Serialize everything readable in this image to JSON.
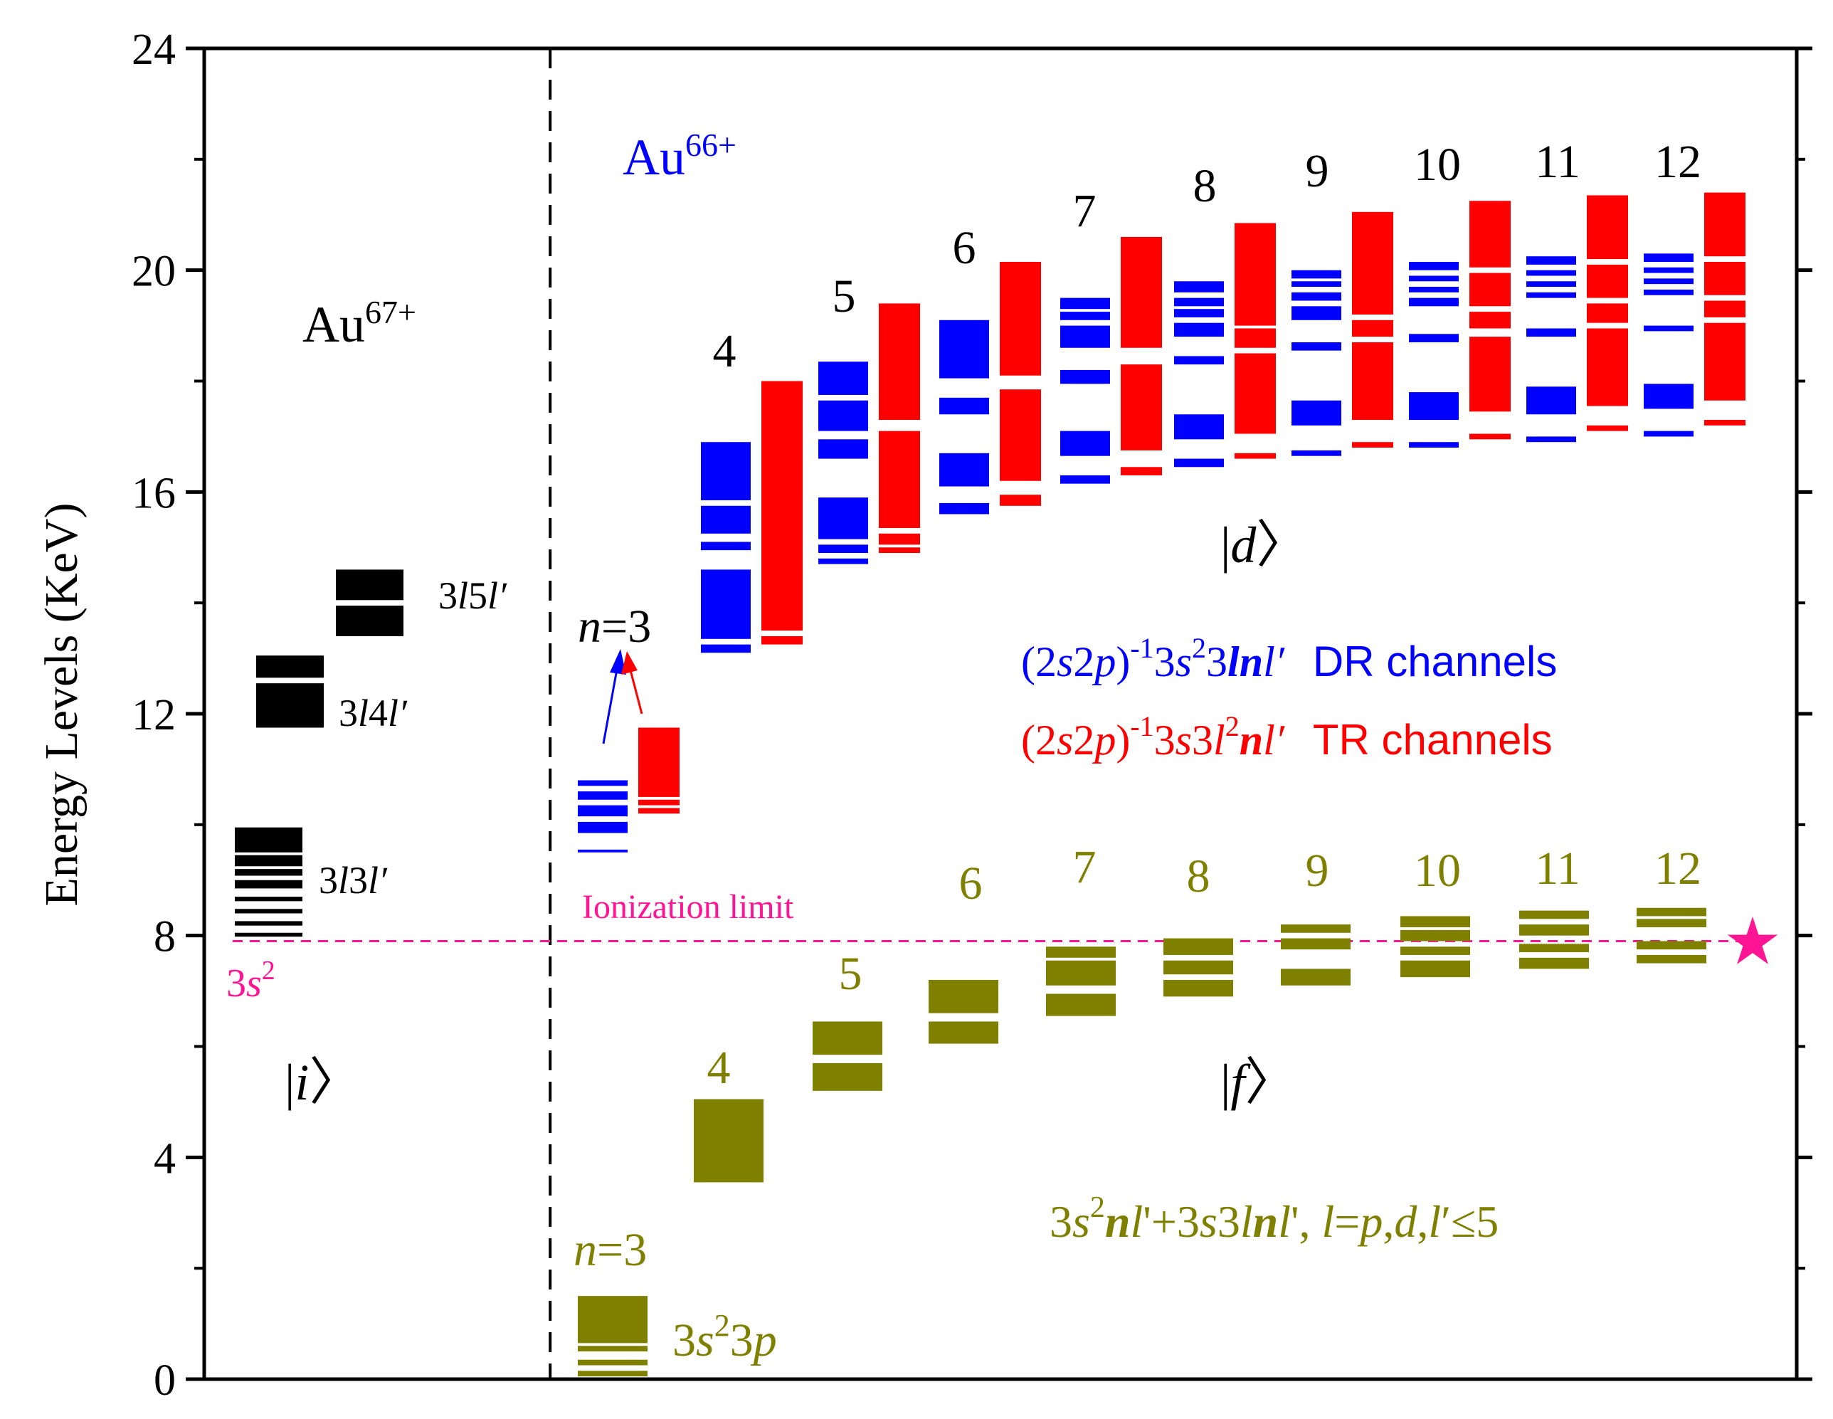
{
  "chart_data": {
    "type": "energy-level-diagram",
    "ylabel": "Energy Levels (KeV)",
    "ylim": [
      0,
      24
    ],
    "yticks": [
      0,
      4,
      8,
      12,
      16,
      20,
      24
    ],
    "grid": false,
    "xlim": [
      0,
      29
    ],
    "divider_x": 6.3,
    "ionization_limit": {
      "energy": 7.9,
      "label": "Ionization limit",
      "color": "#ff1493"
    },
    "colors": {
      "initial": "#000000",
      "dr": "#0000ff",
      "tr": "#ff0000",
      "final": "#808000",
      "limit": "#ff1493",
      "star": "#ff1493"
    },
    "headers": {
      "initial_ion_base": "Au",
      "initial_ion_charge": "67+",
      "recombined_ion_base": "Au",
      "recombined_ion_charge": "66+"
    },
    "state_labels": {
      "initial": {
        "bar": "|",
        "letter": "i",
        "close": "〉"
      },
      "doubly_excited": {
        "bar": "|",
        "letter": "d",
        "close": "〉"
      },
      "final": {
        "bar": "|",
        "letter": "f",
        "close": "〉"
      }
    },
    "initial_ground_label": {
      "num": "3",
      "orb": "s",
      "sup": "2"
    },
    "initial_groups": [
      {
        "name": "3s2",
        "bands": [
          [
            7.98,
            8.05
          ],
          [
            8.18,
            8.26
          ],
          [
            8.4,
            8.48
          ],
          [
            8.62,
            8.7
          ]
        ]
      },
      {
        "name": "3l3l'",
        "bands": [
          [
            8.85,
            9.0
          ],
          [
            9.08,
            9.2
          ],
          [
            9.25,
            9.45
          ],
          [
            9.5,
            9.95
          ]
        ],
        "label": {
          "a": "3",
          "b": "l",
          "c": "3",
          "d": "l′"
        }
      },
      {
        "name": "3l4l'",
        "bands": [
          [
            11.75,
            12.55
          ],
          [
            12.65,
            13.05
          ]
        ],
        "label": {
          "a": "3",
          "b": "l",
          "c": "4",
          "d": "l′"
        }
      },
      {
        "name": "3l5l'",
        "bands": [
          [
            13.4,
            13.95
          ],
          [
            14.05,
            14.6
          ]
        ],
        "label": {
          "a": "3",
          "b": "l",
          "c": "5",
          "d": "l′"
        }
      }
    ],
    "n3_label": {
      "n": "n",
      "eq": "=3"
    },
    "dr_series": [
      {
        "n": 3,
        "bands": [
          [
            9.5,
            9.55
          ],
          [
            9.85,
            10.05
          ],
          [
            10.15,
            10.35
          ],
          [
            10.45,
            10.6
          ],
          [
            10.7,
            10.8
          ]
        ]
      },
      {
        "n": 4,
        "bands": [
          [
            13.1,
            13.25
          ],
          [
            13.35,
            14.6
          ],
          [
            14.95,
            15.1
          ],
          [
            15.25,
            15.75
          ],
          [
            15.85,
            16.9
          ]
        ]
      },
      {
        "n": 5,
        "bands": [
          [
            14.7,
            14.8
          ],
          [
            14.9,
            15.05
          ],
          [
            15.15,
            15.9
          ],
          [
            16.6,
            16.95
          ],
          [
            17.1,
            17.65
          ],
          [
            17.75,
            18.35
          ]
        ]
      },
      {
        "n": 6,
        "bands": [
          [
            15.6,
            15.8
          ],
          [
            16.1,
            16.7
          ],
          [
            17.4,
            17.7
          ],
          [
            18.05,
            19.1
          ]
        ]
      },
      {
        "n": 7,
        "bands": [
          [
            16.15,
            16.3
          ],
          [
            16.65,
            17.1
          ],
          [
            17.95,
            18.2
          ],
          [
            18.6,
            19.0
          ],
          [
            19.1,
            19.25
          ],
          [
            19.3,
            19.5
          ]
        ]
      },
      {
        "n": 8,
        "bands": [
          [
            16.45,
            16.6
          ],
          [
            16.95,
            17.4
          ],
          [
            18.3,
            18.45
          ],
          [
            18.8,
            19.05
          ],
          [
            19.15,
            19.3
          ],
          [
            19.35,
            19.5
          ],
          [
            19.6,
            19.8
          ]
        ]
      },
      {
        "n": 9,
        "bands": [
          [
            16.65,
            16.75
          ],
          [
            17.2,
            17.65
          ],
          [
            18.55,
            18.7
          ],
          [
            19.1,
            19.35
          ],
          [
            19.45,
            19.6
          ],
          [
            19.7,
            19.8
          ],
          [
            19.85,
            20.0
          ]
        ]
      },
      {
        "n": 10,
        "bands": [
          [
            16.8,
            16.9
          ],
          [
            17.3,
            17.8
          ],
          [
            18.7,
            18.85
          ],
          [
            19.35,
            19.5
          ],
          [
            19.6,
            19.7
          ],
          [
            19.8,
            19.9
          ],
          [
            20.0,
            20.15
          ]
        ]
      },
      {
        "n": 11,
        "bands": [
          [
            16.9,
            17.0
          ],
          [
            17.4,
            17.9
          ],
          [
            18.8,
            18.95
          ],
          [
            19.5,
            19.6
          ],
          [
            19.7,
            19.8
          ],
          [
            19.9,
            20.0
          ],
          [
            20.1,
            20.25
          ]
        ]
      },
      {
        "n": 12,
        "bands": [
          [
            17.0,
            17.1
          ],
          [
            17.5,
            17.95
          ],
          [
            18.9,
            19.0
          ],
          [
            19.55,
            19.65
          ],
          [
            19.75,
            19.85
          ],
          [
            19.95,
            20.05
          ],
          [
            20.15,
            20.3
          ]
        ]
      }
    ],
    "tr_series": [
      {
        "n": 3,
        "bands": [
          [
            10.2,
            10.3
          ],
          [
            10.35,
            10.45
          ],
          [
            10.5,
            11.75
          ]
        ]
      },
      {
        "n": 4,
        "bands": [
          [
            13.25,
            13.4
          ],
          [
            13.5,
            18.0
          ]
        ]
      },
      {
        "n": 5,
        "bands": [
          [
            14.9,
            15.0
          ],
          [
            15.05,
            15.25
          ],
          [
            15.35,
            17.1
          ],
          [
            17.3,
            19.4
          ]
        ]
      },
      {
        "n": 6,
        "bands": [
          [
            15.75,
            15.95
          ],
          [
            16.2,
            17.85
          ],
          [
            18.1,
            20.15
          ]
        ]
      },
      {
        "n": 7,
        "bands": [
          [
            16.3,
            16.45
          ],
          [
            16.75,
            18.3
          ],
          [
            18.6,
            20.6
          ]
        ]
      },
      {
        "n": 8,
        "bands": [
          [
            16.6,
            16.7
          ],
          [
            17.05,
            18.5
          ],
          [
            18.6,
            18.95
          ],
          [
            19.0,
            20.85
          ]
        ]
      },
      {
        "n": 9,
        "bands": [
          [
            16.8,
            16.9
          ],
          [
            17.3,
            18.7
          ],
          [
            18.8,
            19.1
          ],
          [
            19.2,
            21.05
          ]
        ]
      },
      {
        "n": 10,
        "bands": [
          [
            16.95,
            17.05
          ],
          [
            17.45,
            18.8
          ],
          [
            18.95,
            19.25
          ],
          [
            19.35,
            19.95
          ],
          [
            20.05,
            21.25
          ]
        ]
      },
      {
        "n": 11,
        "bands": [
          [
            17.1,
            17.2
          ],
          [
            17.55,
            18.95
          ],
          [
            19.05,
            19.4
          ],
          [
            19.5,
            20.1
          ],
          [
            20.2,
            21.35
          ]
        ]
      },
      {
        "n": 12,
        "bands": [
          [
            17.2,
            17.3
          ],
          [
            17.65,
            19.05
          ],
          [
            19.15,
            19.45
          ],
          [
            19.55,
            20.15
          ],
          [
            20.25,
            21.4
          ]
        ]
      }
    ],
    "final_series": [
      {
        "n": 3,
        "bands": [
          [
            0.05,
            0.15
          ],
          [
            0.25,
            0.35
          ],
          [
            0.5,
            0.6
          ],
          [
            0.65,
            1.5
          ]
        ]
      },
      {
        "n": 4,
        "bands": [
          [
            3.55,
            5.05
          ]
        ]
      },
      {
        "n": 5,
        "bands": [
          [
            5.2,
            5.7
          ],
          [
            5.85,
            6.45
          ]
        ]
      },
      {
        "n": 6,
        "bands": [
          [
            6.05,
            6.45
          ],
          [
            6.6,
            7.2
          ]
        ]
      },
      {
        "n": 7,
        "bands": [
          [
            6.55,
            6.95
          ],
          [
            7.1,
            7.55
          ],
          [
            7.6,
            7.8
          ]
        ]
      },
      {
        "n": 8,
        "bands": [
          [
            6.9,
            7.2
          ],
          [
            7.3,
            7.55
          ],
          [
            7.65,
            7.95
          ]
        ]
      },
      {
        "n": 9,
        "bands": [
          [
            7.1,
            7.4
          ],
          [
            7.75,
            7.95
          ],
          [
            8.05,
            8.2
          ]
        ]
      },
      {
        "n": 10,
        "bands": [
          [
            7.25,
            7.55
          ],
          [
            7.65,
            7.8
          ],
          [
            7.9,
            8.1
          ],
          [
            8.15,
            8.35
          ]
        ]
      },
      {
        "n": 11,
        "bands": [
          [
            7.4,
            7.6
          ],
          [
            7.7,
            7.85
          ],
          [
            8.0,
            8.2
          ],
          [
            8.3,
            8.45
          ]
        ]
      },
      {
        "n": 12,
        "bands": [
          [
            7.5,
            7.65
          ],
          [
            7.75,
            7.9
          ],
          [
            8.15,
            8.3
          ],
          [
            8.35,
            8.5
          ]
        ]
      }
    ],
    "upper_n_labels": [
      "4",
      "5",
      "6",
      "7",
      "8",
      "9",
      "10",
      "11",
      "12"
    ],
    "final_n_labels": [
      "4",
      "5",
      "6",
      "7",
      "8",
      "9",
      "10",
      "11",
      "12"
    ],
    "final_3s23p_label": {
      "a": "3",
      "b": "s",
      "sup": "2",
      "c": "3",
      "d": "p"
    },
    "legend": {
      "dr": {
        "p1": "(2",
        "s": "s",
        "two": "2",
        "p": "p",
        "p2": ")",
        "sup1": "-1",
        "p3": "3",
        "s2": "s",
        "sup2": "2",
        "p4": "3",
        "l": "l",
        "n": "n",
        "lp": "l′",
        "text": "DR channels"
      },
      "tr": {
        "p1": "(2",
        "s": "s",
        "two": "2",
        "p": "p",
        "p2": ")",
        "sup1": "-1",
        "p3": "3",
        "s2": "s",
        "p4": "3",
        "l": "l",
        "sup2": "2",
        "n": "n",
        "lp": "l′",
        "text": "TR channels"
      }
    },
    "final_config_label": {
      "a": "3",
      "b": "s",
      "sup": "2",
      "c": "n",
      "d": "l",
      "e": "'+3",
      "f": "s",
      "g": "3",
      "h": "l",
      "i": "n",
      "j": "l",
      "k": "', ",
      "l1": "l",
      "m": "=",
      "pp": "p",
      "comma1": ",",
      "dd": "d",
      "comma2": ",",
      "l2": "l",
      "tail": "′≤5"
    },
    "star_marker": {
      "energy": 7.9,
      "symbol": "★"
    }
  }
}
